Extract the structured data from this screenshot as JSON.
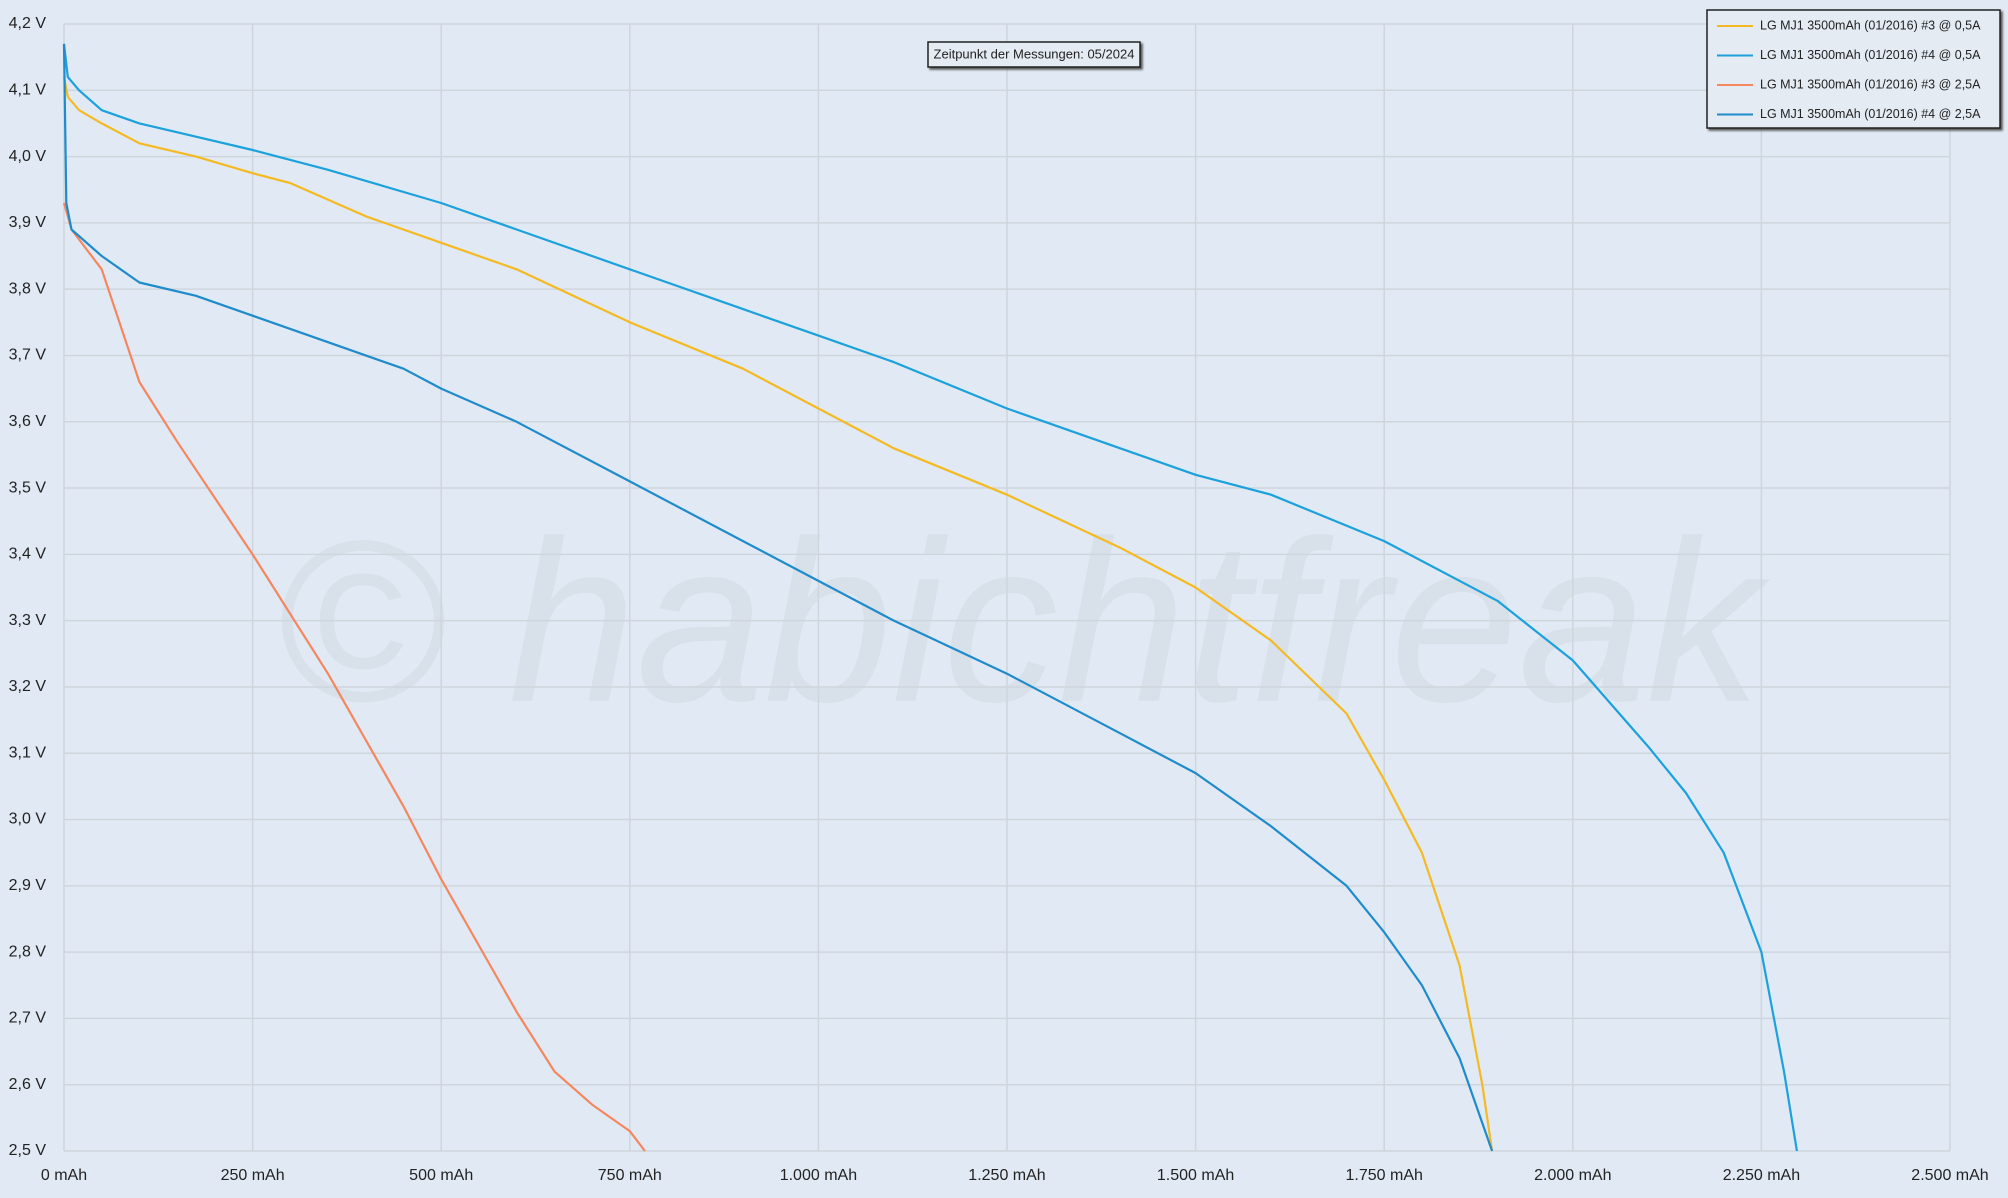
{
  "chart_data": {
    "type": "line",
    "watermark": "© habichtfreak",
    "annotation": "Zeitpunkt der Messungen: 05/2024",
    "xlim": [
      0,
      2500
    ],
    "xticks": [
      {
        "value": 0,
        "label": "0 mAh"
      },
      {
        "value": 250,
        "label": "250 mAh"
      },
      {
        "value": 500,
        "label": "500 mAh"
      },
      {
        "value": 750,
        "label": "750 mAh"
      },
      {
        "value": 1000,
        "label": "1.000 mAh"
      },
      {
        "value": 1250,
        "label": "1.250 mAh"
      },
      {
        "value": 1500,
        "label": "1.500 mAh"
      },
      {
        "value": 1750,
        "label": "1.750 mAh"
      },
      {
        "value": 2000,
        "label": "2.000 mAh"
      },
      {
        "value": 2250,
        "label": "2.250 mAh"
      },
      {
        "value": 2500,
        "label": "2.500 mAh"
      }
    ],
    "ylim": [
      2.5,
      4.2
    ],
    "yticks": [
      {
        "value": 2.5,
        "label": "2,5 V"
      },
      {
        "value": 2.6,
        "label": "2,6 V"
      },
      {
        "value": 2.7,
        "label": "2,7 V"
      },
      {
        "value": 2.8,
        "label": "2,8 V"
      },
      {
        "value": 2.9,
        "label": "2,9 V"
      },
      {
        "value": 3.0,
        "label": "3,0 V"
      },
      {
        "value": 3.1,
        "label": "3,1 V"
      },
      {
        "value": 3.2,
        "label": "3,2 V"
      },
      {
        "value": 3.3,
        "label": "3,3 V"
      },
      {
        "value": 3.4,
        "label": "3,4 V"
      },
      {
        "value": 3.5,
        "label": "3,5 V"
      },
      {
        "value": 3.6,
        "label": "3,6 V"
      },
      {
        "value": 3.7,
        "label": "3,7 V"
      },
      {
        "value": 3.8,
        "label": "3,8 V"
      },
      {
        "value": 3.9,
        "label": "3,9 V"
      },
      {
        "value": 4.0,
        "label": "4,0 V"
      },
      {
        "value": 4.1,
        "label": "4,1 V"
      },
      {
        "value": 4.2,
        "label": "4,2 V"
      }
    ],
    "grid": true,
    "legend_position": "top-right",
    "series": [
      {
        "name": "LG MJ1 3500mAh (01/2016) #3 @ 0,5A",
        "color": "#f5b921",
        "x": [
          0,
          5,
          20,
          50,
          100,
          175,
          250,
          300,
          400,
          500,
          600,
          750,
          900,
          1000,
          1100,
          1250,
          1400,
          1500,
          1600,
          1700,
          1750,
          1800,
          1850,
          1880,
          1893
        ],
        "values": [
          4.12,
          4.09,
          4.07,
          4.05,
          4.02,
          4.0,
          3.975,
          3.96,
          3.91,
          3.87,
          3.83,
          3.75,
          3.68,
          3.62,
          3.56,
          3.49,
          3.41,
          3.35,
          3.27,
          3.16,
          3.06,
          2.95,
          2.78,
          2.6,
          2.5
        ]
      },
      {
        "name": "LG MJ1 3500mAh (01/2016) #4 @ 0,5A",
        "color": "#1ba1dc",
        "x": [
          0,
          5,
          20,
          50,
          100,
          175,
          250,
          350,
          500,
          600,
          750,
          900,
          1000,
          1100,
          1250,
          1400,
          1500,
          1600,
          1750,
          1900,
          2000,
          2100,
          2150,
          2200,
          2250,
          2280,
          2297
        ],
        "values": [
          4.17,
          4.12,
          4.1,
          4.07,
          4.05,
          4.03,
          4.01,
          3.98,
          3.93,
          3.89,
          3.83,
          3.77,
          3.73,
          3.69,
          3.62,
          3.56,
          3.52,
          3.49,
          3.42,
          3.33,
          3.24,
          3.11,
          3.04,
          2.95,
          2.8,
          2.62,
          2.5
        ]
      },
      {
        "name": "LG MJ1 3500mAh (01/2016) #3 @ 2,5A",
        "color": "#f4875f",
        "x": [
          0,
          10,
          50,
          100,
          150,
          250,
          350,
          450,
          500,
          550,
          600,
          650,
          700,
          750,
          770
        ],
        "values": [
          3.93,
          3.89,
          3.83,
          3.66,
          3.57,
          3.4,
          3.22,
          3.02,
          2.91,
          2.81,
          2.71,
          2.62,
          2.57,
          2.53,
          2.5
        ]
      },
      {
        "name": "LG MJ1 3500mAh (01/2016) #4 @ 2,5A",
        "color": "#1f8bcb",
        "x": [
          0,
          3,
          10,
          50,
          100,
          175,
          250,
          350,
          450,
          500,
          600,
          750,
          900,
          1000,
          1100,
          1250,
          1400,
          1500,
          1600,
          1700,
          1750,
          1800,
          1850,
          1893
        ],
        "values": [
          4.17,
          3.93,
          3.89,
          3.85,
          3.81,
          3.79,
          3.76,
          3.72,
          3.68,
          3.65,
          3.6,
          3.51,
          3.42,
          3.36,
          3.3,
          3.22,
          3.13,
          3.07,
          2.99,
          2.9,
          2.83,
          2.75,
          2.64,
          2.5
        ]
      }
    ]
  }
}
